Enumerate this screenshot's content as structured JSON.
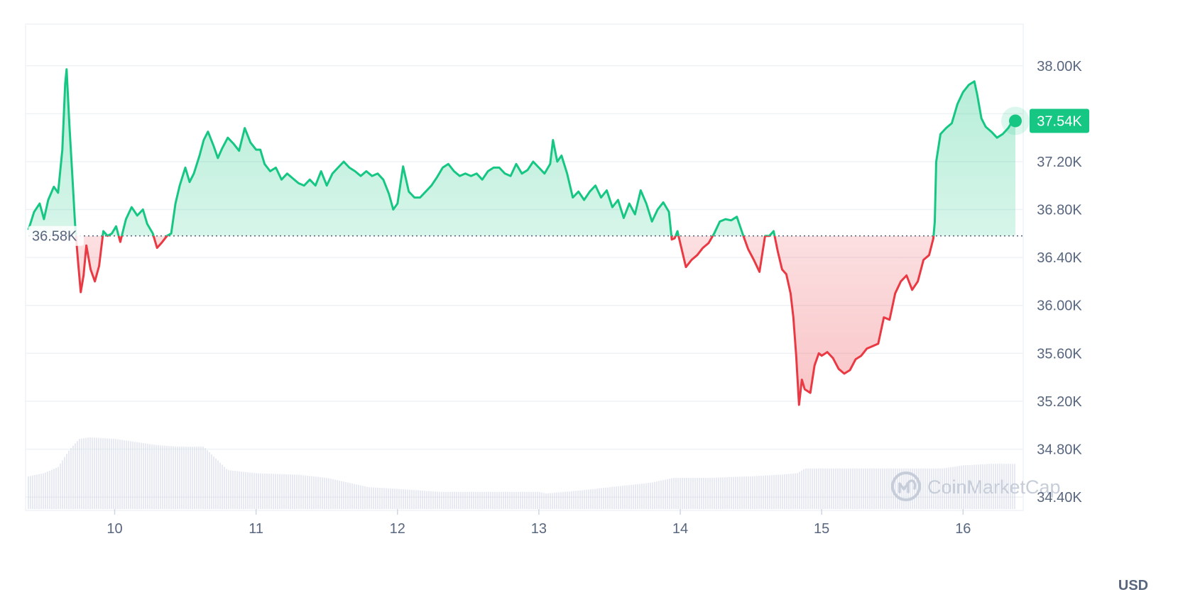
{
  "colors": {
    "up": "#16c784",
    "down": "#ea3943",
    "grid": "#eff2f5",
    "axis_text": "#58667e",
    "volume": "#cfd6e4",
    "watermark": "#c5ccd8"
  },
  "watermark": {
    "text": "CoinMarketCap",
    "icon": "coinmarketcap-logo-icon"
  },
  "chart_data": {
    "type": "line",
    "x_label_unit": "day",
    "x_ticks": [
      "10",
      "11",
      "12",
      "13",
      "14",
      "15",
      "16"
    ],
    "x_tick_days": [
      10,
      11,
      12,
      13,
      14,
      15,
      16
    ],
    "x_range": [
      9.39,
      16.37
    ],
    "y_ticks": [
      "34.40K",
      "34.80K",
      "35.20K",
      "35.60K",
      "36.00K",
      "36.40K",
      "36.80K",
      "37.20K",
      "37.60K",
      "38.00K"
    ],
    "y_tick_values": [
      34400,
      34800,
      35200,
      35600,
      36000,
      36400,
      36800,
      37200,
      37600,
      38000
    ],
    "ylim": [
      34300,
      38330
    ],
    "currency_label": "USD",
    "reference_price": 36580,
    "reference_label": "36.58K",
    "current_price": 37540,
    "current_label": "37.54K",
    "grid": true,
    "series": [
      {
        "values": [
          [
            9.39,
            36630
          ],
          [
            9.43,
            36780
          ],
          [
            9.47,
            36850
          ],
          [
            9.5,
            36720
          ],
          [
            9.53,
            36880
          ],
          [
            9.57,
            36990
          ],
          [
            9.6,
            36940
          ],
          [
            9.63,
            37300
          ],
          [
            9.65,
            37850
          ],
          [
            9.66,
            37970
          ],
          [
            9.68,
            37500
          ],
          [
            9.7,
            37100
          ],
          [
            9.72,
            36680
          ],
          [
            9.74,
            36380
          ],
          [
            9.76,
            36110
          ],
          [
            9.78,
            36250
          ],
          [
            9.8,
            36500
          ],
          [
            9.83,
            36300
          ],
          [
            9.86,
            36200
          ],
          [
            9.89,
            36330
          ],
          [
            9.92,
            36620
          ],
          [
            9.95,
            36580
          ],
          [
            9.98,
            36600
          ],
          [
            10.01,
            36660
          ],
          [
            10.04,
            36530
          ],
          [
            10.08,
            36720
          ],
          [
            10.12,
            36820
          ],
          [
            10.16,
            36750
          ],
          [
            10.2,
            36800
          ],
          [
            10.23,
            36680
          ],
          [
            10.27,
            36600
          ],
          [
            10.3,
            36480
          ],
          [
            10.33,
            36520
          ],
          [
            10.37,
            36580
          ],
          [
            10.4,
            36600
          ],
          [
            10.43,
            36850
          ],
          [
            10.46,
            37000
          ],
          [
            10.5,
            37150
          ],
          [
            10.53,
            37030
          ],
          [
            10.56,
            37100
          ],
          [
            10.6,
            37250
          ],
          [
            10.63,
            37380
          ],
          [
            10.66,
            37450
          ],
          [
            10.7,
            37330
          ],
          [
            10.73,
            37230
          ],
          [
            10.76,
            37310
          ],
          [
            10.8,
            37400
          ],
          [
            10.84,
            37350
          ],
          [
            10.88,
            37290
          ],
          [
            10.92,
            37480
          ],
          [
            10.96,
            37360
          ],
          [
            11.0,
            37300
          ],
          [
            11.03,
            37300
          ],
          [
            11.06,
            37180
          ],
          [
            11.1,
            37120
          ],
          [
            11.14,
            37150
          ],
          [
            11.18,
            37050
          ],
          [
            11.22,
            37100
          ],
          [
            11.26,
            37060
          ],
          [
            11.3,
            37020
          ],
          [
            11.34,
            37000
          ],
          [
            11.38,
            37050
          ],
          [
            11.42,
            37000
          ],
          [
            11.46,
            37120
          ],
          [
            11.5,
            37000
          ],
          [
            11.54,
            37100
          ],
          [
            11.58,
            37150
          ],
          [
            11.62,
            37200
          ],
          [
            11.66,
            37150
          ],
          [
            11.7,
            37120
          ],
          [
            11.74,
            37080
          ],
          [
            11.78,
            37120
          ],
          [
            11.82,
            37080
          ],
          [
            11.86,
            37100
          ],
          [
            11.9,
            37050
          ],
          [
            11.94,
            36930
          ],
          [
            11.97,
            36800
          ],
          [
            12.0,
            36850
          ],
          [
            12.04,
            37160
          ],
          [
            12.08,
            36950
          ],
          [
            12.12,
            36900
          ],
          [
            12.16,
            36900
          ],
          [
            12.2,
            36950
          ],
          [
            12.24,
            37000
          ],
          [
            12.28,
            37070
          ],
          [
            12.32,
            37150
          ],
          [
            12.36,
            37180
          ],
          [
            12.4,
            37120
          ],
          [
            12.44,
            37080
          ],
          [
            12.48,
            37100
          ],
          [
            12.52,
            37080
          ],
          [
            12.56,
            37100
          ],
          [
            12.6,
            37050
          ],
          [
            12.64,
            37120
          ],
          [
            12.68,
            37150
          ],
          [
            12.72,
            37150
          ],
          [
            12.76,
            37100
          ],
          [
            12.8,
            37080
          ],
          [
            12.84,
            37180
          ],
          [
            12.88,
            37100
          ],
          [
            12.92,
            37130
          ],
          [
            12.96,
            37200
          ],
          [
            13.0,
            37150
          ],
          [
            13.04,
            37100
          ],
          [
            13.08,
            37180
          ],
          [
            13.1,
            37380
          ],
          [
            13.13,
            37200
          ],
          [
            13.16,
            37250
          ],
          [
            13.2,
            37100
          ],
          [
            13.24,
            36900
          ],
          [
            13.28,
            36950
          ],
          [
            13.32,
            36880
          ],
          [
            13.36,
            36950
          ],
          [
            13.4,
            37000
          ],
          [
            13.44,
            36900
          ],
          [
            13.48,
            36960
          ],
          [
            13.52,
            36820
          ],
          [
            13.56,
            36880
          ],
          [
            13.6,
            36730
          ],
          [
            13.64,
            36850
          ],
          [
            13.68,
            36760
          ],
          [
            13.72,
            36960
          ],
          [
            13.76,
            36850
          ],
          [
            13.8,
            36700
          ],
          [
            13.84,
            36800
          ],
          [
            13.88,
            36860
          ],
          [
            13.92,
            36780
          ],
          [
            13.94,
            36550
          ],
          [
            13.96,
            36560
          ],
          [
            13.98,
            36620
          ],
          [
            14.0,
            36520
          ],
          [
            14.04,
            36320
          ],
          [
            14.08,
            36380
          ],
          [
            14.12,
            36420
          ],
          [
            14.16,
            36480
          ],
          [
            14.2,
            36520
          ],
          [
            14.24,
            36600
          ],
          [
            14.28,
            36700
          ],
          [
            14.32,
            36720
          ],
          [
            14.36,
            36710
          ],
          [
            14.4,
            36740
          ],
          [
            14.44,
            36600
          ],
          [
            14.48,
            36470
          ],
          [
            14.52,
            36380
          ],
          [
            14.56,
            36280
          ],
          [
            14.6,
            36580
          ],
          [
            14.63,
            36580
          ],
          [
            14.66,
            36620
          ],
          [
            14.69,
            36450
          ],
          [
            14.72,
            36300
          ],
          [
            14.75,
            36260
          ],
          [
            14.78,
            36100
          ],
          [
            14.8,
            35900
          ],
          [
            14.82,
            35580
          ],
          [
            14.84,
            35170
          ],
          [
            14.86,
            35380
          ],
          [
            14.88,
            35300
          ],
          [
            14.92,
            35270
          ],
          [
            14.95,
            35500
          ],
          [
            14.98,
            35600
          ],
          [
            15.0,
            35580
          ],
          [
            15.04,
            35610
          ],
          [
            15.08,
            35560
          ],
          [
            15.12,
            35470
          ],
          [
            15.16,
            35430
          ],
          [
            15.2,
            35460
          ],
          [
            15.24,
            35550
          ],
          [
            15.28,
            35580
          ],
          [
            15.32,
            35640
          ],
          [
            15.36,
            35660
          ],
          [
            15.4,
            35680
          ],
          [
            15.44,
            35900
          ],
          [
            15.48,
            35880
          ],
          [
            15.52,
            36100
          ],
          [
            15.56,
            36200
          ],
          [
            15.6,
            36250
          ],
          [
            15.64,
            36130
          ],
          [
            15.68,
            36200
          ],
          [
            15.72,
            36380
          ],
          [
            15.76,
            36420
          ],
          [
            15.79,
            36560
          ],
          [
            15.8,
            36700
          ],
          [
            15.81,
            37200
          ],
          [
            15.84,
            37430
          ],
          [
            15.88,
            37480
          ],
          [
            15.92,
            37520
          ],
          [
            15.96,
            37680
          ],
          [
            16.0,
            37780
          ],
          [
            16.04,
            37840
          ],
          [
            16.08,
            37870
          ],
          [
            16.1,
            37760
          ],
          [
            16.13,
            37560
          ],
          [
            16.16,
            37490
          ],
          [
            16.2,
            37450
          ],
          [
            16.24,
            37400
          ],
          [
            16.28,
            37430
          ],
          [
            16.32,
            37480
          ],
          [
            16.35,
            37540
          ],
          [
            16.37,
            37540
          ]
        ]
      }
    ],
    "volume": {
      "relative_values": [
        [
          9.39,
          0.21
        ],
        [
          9.5,
          0.23
        ],
        [
          9.6,
          0.27
        ],
        [
          9.68,
          0.38
        ],
        [
          9.75,
          0.45
        ],
        [
          9.82,
          0.46
        ],
        [
          10.0,
          0.45
        ],
        [
          10.15,
          0.43
        ],
        [
          10.3,
          0.41
        ],
        [
          10.45,
          0.4
        ],
        [
          10.63,
          0.4
        ],
        [
          10.72,
          0.32
        ],
        [
          10.8,
          0.25
        ],
        [
          11.0,
          0.23
        ],
        [
          11.3,
          0.22
        ],
        [
          11.5,
          0.2
        ],
        [
          11.8,
          0.14
        ],
        [
          12.0,
          0.13
        ],
        [
          12.3,
          0.11
        ],
        [
          12.6,
          0.11
        ],
        [
          13.0,
          0.11
        ],
        [
          13.05,
          0.1
        ],
        [
          13.3,
          0.12
        ],
        [
          13.6,
          0.15
        ],
        [
          13.8,
          0.17
        ],
        [
          13.95,
          0.2
        ],
        [
          14.2,
          0.2
        ],
        [
          14.5,
          0.21
        ],
        [
          14.7,
          0.22
        ],
        [
          14.83,
          0.23
        ],
        [
          14.88,
          0.26
        ],
        [
          15.0,
          0.26
        ],
        [
          15.3,
          0.26
        ],
        [
          15.6,
          0.26
        ],
        [
          15.8,
          0.26
        ],
        [
          15.85,
          0.26
        ],
        [
          16.0,
          0.28
        ],
        [
          16.2,
          0.29
        ],
        [
          16.37,
          0.29
        ]
      ]
    }
  }
}
